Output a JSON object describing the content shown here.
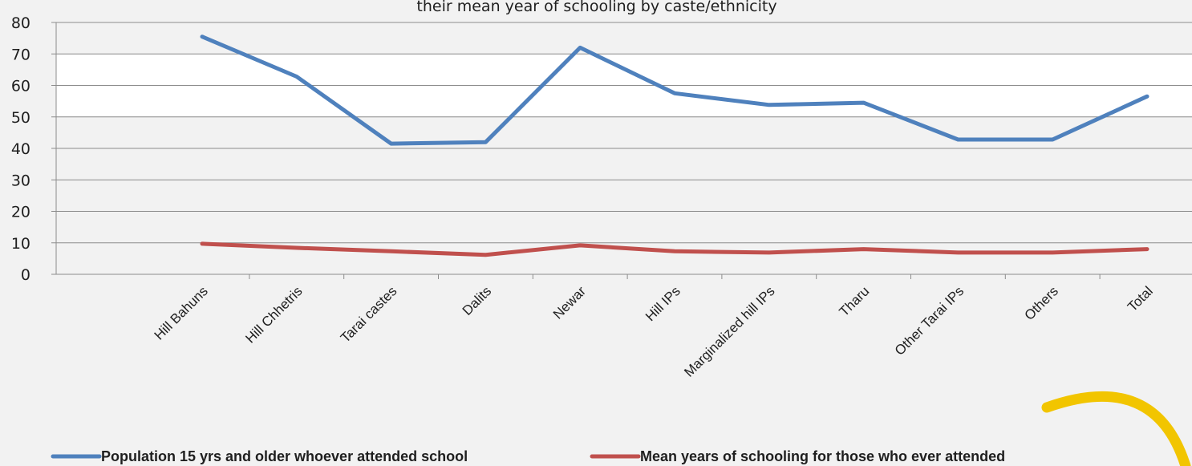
{
  "chart_data": {
    "type": "line",
    "title": "their mean year of schooling by caste/ethnicity",
    "categories": [
      "Hill Bahuns",
      "Hill Chhetris",
      "Tarai castes",
      "Dalits",
      "Newar",
      "Hill IPs",
      "Marginalized hill IPs",
      "Tharu",
      "Other Tarai IPs",
      "Others",
      "Total"
    ],
    "series": [
      {
        "name": "Population 15 yrs and older whoever attended school",
        "color": "#4f81bd",
        "values": [
          75.5,
          62.8,
          41.5,
          42.0,
          72.0,
          57.5,
          53.8,
          54.5,
          42.8,
          42.8,
          56.5
        ]
      },
      {
        "name": "Mean years of schooling for those who ever attended",
        "color": "#c0504d",
        "values": [
          9.7,
          8.4,
          7.3,
          6.2,
          9.2,
          7.3,
          6.9,
          8.0,
          6.9,
          6.9,
          8.0
        ]
      }
    ],
    "yticks": [
      0,
      10,
      20,
      30,
      40,
      50,
      60,
      70,
      80
    ],
    "ylim": [
      0,
      80
    ],
    "xlabel": "",
    "ylabel": "",
    "grid": true,
    "legend_position": "bottom"
  },
  "decoration": {
    "accent_color": "#f2c500"
  }
}
